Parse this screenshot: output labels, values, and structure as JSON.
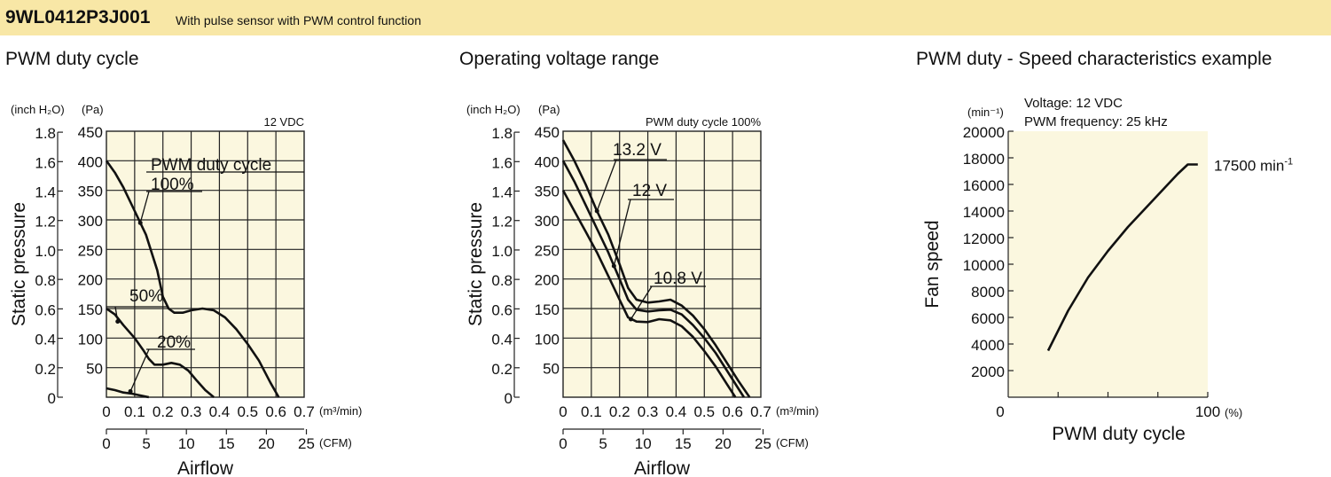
{
  "header": {
    "model": "9WL0412P3J001",
    "description": "With pulse sensor with PWM control function"
  },
  "sections": {
    "chart1_title": "PWM duty cycle",
    "chart2_title": "Operating voltage range",
    "chart3_title": "PWM duty - Speed characteristics example"
  },
  "chart_data": [
    {
      "type": "line",
      "title": "PWM duty cycle",
      "note": "12 VDC",
      "ylabel": "Static pressure",
      "y_unit_left": "(inch H₂O)",
      "y_unit_right": "(Pa)",
      "xlabel": "Airflow",
      "x_unit_top": "(m³/min)",
      "x_unit_bottom": "(CFM)",
      "xlim": [
        0,
        0.7
      ],
      "ylim": [
        0,
        450
      ],
      "x_ticks": [
        "0",
        "0.1",
        "0.2",
        "0.3",
        "0.4",
        "0.5",
        "0.6",
        "0.7"
      ],
      "cfm_ticks": [
        "0",
        "5",
        "10",
        "15",
        "20",
        "25"
      ],
      "pa_ticks": [
        "450",
        "400",
        "350",
        "300",
        "250",
        "200",
        "150",
        "100",
        "50"
      ],
      "inch_ticks": [
        "1.8",
        "1.6",
        "1.4",
        "1.2",
        "1.0",
        "0.8",
        "0.6",
        "0.4",
        "0.2",
        "0"
      ],
      "legend_title": "PWM duty cycle",
      "series": [
        {
          "name": "100%",
          "x": [
            0,
            0.03,
            0.06,
            0.1,
            0.14,
            0.18,
            0.2,
            0.22,
            0.24,
            0.27,
            0.3,
            0.34,
            0.38,
            0.42,
            0.46,
            0.5,
            0.54,
            0.58,
            0.61
          ],
          "y": [
            400,
            380,
            355,
            315,
            275,
            215,
            170,
            150,
            143,
            143,
            147,
            150,
            147,
            135,
            115,
            90,
            62,
            25,
            0
          ]
        },
        {
          "name": "50%",
          "x": [
            0,
            0.03,
            0.06,
            0.1,
            0.13,
            0.15,
            0.17,
            0.2,
            0.23,
            0.26,
            0.29,
            0.32,
            0.35,
            0.38
          ],
          "y": [
            150,
            140,
            122,
            100,
            80,
            65,
            55,
            55,
            58,
            55,
            45,
            28,
            12,
            0
          ]
        },
        {
          "name": "20%",
          "x": [
            0,
            0.03,
            0.06,
            0.09,
            0.12,
            0.15
          ],
          "y": [
            15,
            12,
            8,
            6,
            3,
            0
          ]
        }
      ]
    },
    {
      "type": "line",
      "title": "Operating voltage range",
      "note": "PWM duty cycle 100%",
      "ylabel": "Static pressure",
      "y_unit_left": "(inch H₂O)",
      "y_unit_right": "(Pa)",
      "xlabel": "Airflow",
      "x_unit_top": "(m³/min)",
      "x_unit_bottom": "(CFM)",
      "xlim": [
        0,
        0.7
      ],
      "ylim": [
        0,
        450
      ],
      "x_ticks": [
        "0",
        "0.1",
        "0.2",
        "0.3",
        "0.4",
        "0.5",
        "0.6",
        "0.7"
      ],
      "cfm_ticks": [
        "0",
        "5",
        "10",
        "15",
        "20",
        "25"
      ],
      "pa_ticks": [
        "450",
        "400",
        "350",
        "300",
        "250",
        "200",
        "150",
        "100",
        "50"
      ],
      "inch_ticks": [
        "1.8",
        "1.6",
        "1.4",
        "1.2",
        "1.0",
        "0.8",
        "0.6",
        "0.4",
        "0.2",
        "0"
      ],
      "series": [
        {
          "name": "13.2 V",
          "x": [
            0,
            0.04,
            0.08,
            0.12,
            0.16,
            0.2,
            0.23,
            0.26,
            0.3,
            0.34,
            0.38,
            0.42,
            0.46,
            0.5,
            0.54,
            0.58,
            0.62,
            0.66
          ],
          "y": [
            435,
            400,
            360,
            315,
            275,
            225,
            185,
            165,
            160,
            162,
            165,
            155,
            138,
            115,
            88,
            58,
            28,
            0
          ]
        },
        {
          "name": "12 V",
          "x": [
            0,
            0.04,
            0.08,
            0.12,
            0.16,
            0.2,
            0.23,
            0.26,
            0.3,
            0.34,
            0.38,
            0.42,
            0.46,
            0.5,
            0.54,
            0.58,
            0.62,
            0.64
          ],
          "y": [
            400,
            365,
            325,
            285,
            245,
            200,
            165,
            148,
            145,
            147,
            148,
            140,
            122,
            100,
            75,
            45,
            15,
            0
          ]
        },
        {
          "name": "10.8 V",
          "x": [
            0,
            0.04,
            0.08,
            0.12,
            0.16,
            0.2,
            0.23,
            0.26,
            0.3,
            0.34,
            0.38,
            0.42,
            0.46,
            0.5,
            0.54,
            0.58,
            0.61
          ],
          "y": [
            350,
            315,
            280,
            245,
            205,
            165,
            135,
            128,
            127,
            132,
            130,
            120,
            102,
            78,
            52,
            22,
            0
          ]
        }
      ]
    },
    {
      "type": "line",
      "title": "PWM duty - Speed characteristics example",
      "notes": [
        "Voltage: 12 VDC",
        "PWM frequency: 25 kHz"
      ],
      "ylabel": "Fan speed",
      "y_unit": "(min⁻¹)",
      "xlabel": "PWM duty cycle",
      "x_unit": "(%)",
      "xlim": [
        0,
        100
      ],
      "ylim": [
        0,
        20000
      ],
      "x_ticks": [
        "0",
        "100"
      ],
      "y_ticks": [
        "20000",
        "18000",
        "16000",
        "14000",
        "12000",
        "10000",
        "8000",
        "6000",
        "4000",
        "2000"
      ],
      "annotation": "17500 min",
      "annotation_sup": "-1",
      "series": [
        {
          "name": "",
          "x": [
            20,
            30,
            40,
            50,
            60,
            70,
            80,
            85,
            90,
            92,
            95
          ],
          "y": [
            3500,
            6500,
            9000,
            11000,
            12800,
            14400,
            16000,
            16800,
            17500,
            17500,
            17500
          ]
        }
      ]
    }
  ]
}
